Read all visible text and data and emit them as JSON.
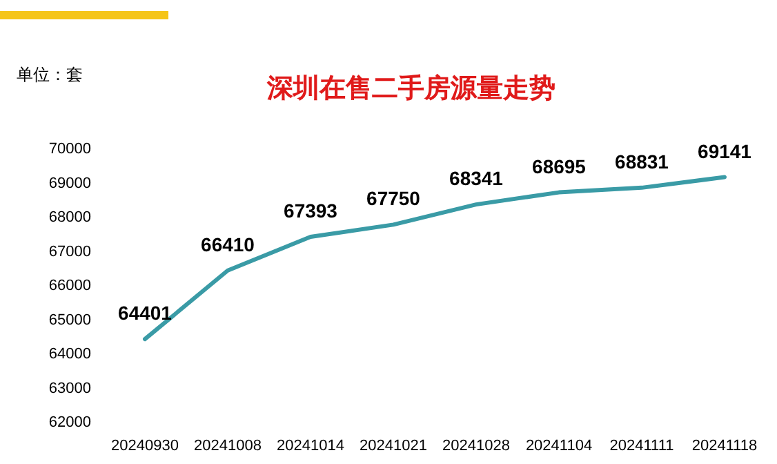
{
  "chart_data": {
    "type": "line",
    "title": "深圳在售二手房源量走势",
    "ylabel": "单位：套",
    "categories": [
      "20240930",
      "20241008",
      "20241014",
      "20241021",
      "20241028",
      "20241104",
      "20241111",
      "20241118"
    ],
    "series": [
      {
        "color": "#3a9ba6",
        "values": [
          64401,
          66410,
          67393,
          67750,
          68341,
          68695,
          68831,
          69141
        ]
      }
    ],
    "ylim": [
      62000,
      70000
    ],
    "yticks": [
      62000,
      63000,
      64000,
      65000,
      66000,
      67000,
      68000,
      69000,
      70000
    ],
    "data_labels": true,
    "grid": false,
    "marker": "none",
    "line_style": "solid"
  }
}
